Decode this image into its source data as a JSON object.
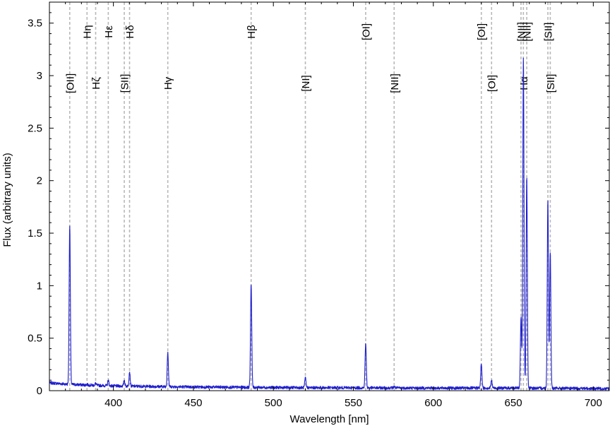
{
  "chart_data": {
    "type": "line",
    "title": "",
    "xlabel": "Wavelength [nm]",
    "ylabel": "Flux (arbitrary units)",
    "xlim": [
      360,
      710
    ],
    "ylim": [
      0,
      3.7
    ],
    "grid": false,
    "x_ticks": [
      {
        "value": 400,
        "label": "400"
      },
      {
        "value": 450,
        "label": "450"
      },
      {
        "value": 500,
        "label": "500"
      },
      {
        "value": 550,
        "label": "550"
      },
      {
        "value": 600,
        "label": "600"
      },
      {
        "value": 650,
        "label": "650"
      },
      {
        "value": 700,
        "label": "700"
      }
    ],
    "y_ticks": [
      {
        "value": 0,
        "label": "0"
      },
      {
        "value": 0.5,
        "label": "0.5"
      },
      {
        "value": 1,
        "label": "1"
      },
      {
        "value": 1.5,
        "label": "1.5"
      },
      {
        "value": 2,
        "label": "2"
      },
      {
        "value": 2.5,
        "label": "2.5"
      },
      {
        "value": 3,
        "label": "3"
      },
      {
        "value": 3.5,
        "label": "3.5"
      }
    ],
    "colors": {
      "spectrum": "#1f1fcf",
      "reference_lines": "#b8b8b8",
      "axes": "#000000"
    },
    "continuum": [
      [
        360,
        0.075
      ],
      [
        372,
        0.06
      ],
      [
        400,
        0.045
      ],
      [
        450,
        0.035
      ],
      [
        500,
        0.03
      ],
      [
        600,
        0.025
      ],
      [
        650,
        0.025
      ],
      [
        710,
        0.02
      ]
    ],
    "series": [
      {
        "peaks": [
          {
            "x": 372.7,
            "y": 1.58
          },
          {
            "x": 383.5,
            "y": 0.06
          },
          {
            "x": 388.9,
            "y": 0.07
          },
          {
            "x": 396.8,
            "y": 0.1
          },
          {
            "x": 406.8,
            "y": 0.1
          },
          {
            "x": 410.1,
            "y": 0.18
          },
          {
            "x": 434.0,
            "y": 0.37
          },
          {
            "x": 486.1,
            "y": 1.02
          },
          {
            "x": 520.0,
            "y": 0.12
          },
          {
            "x": 557.7,
            "y": 0.45
          },
          {
            "x": 575.5,
            "y": 0.04
          },
          {
            "x": 630.0,
            "y": 0.26
          },
          {
            "x": 636.4,
            "y": 0.1
          },
          {
            "x": 654.8,
            "y": 0.7
          },
          {
            "x": 656.3,
            "y": 3.16
          },
          {
            "x": 658.4,
            "y": 2.04
          },
          {
            "x": 671.6,
            "y": 1.82
          },
          {
            "x": 673.1,
            "y": 1.32
          }
        ]
      }
    ],
    "line_markers": [
      {
        "x": 372.7,
        "label": "[OII]",
        "row": 2
      },
      {
        "x": 383.5,
        "label": "Hη",
        "row": 1
      },
      {
        "x": 388.9,
        "label": "Hζ",
        "row": 2
      },
      {
        "x": 396.8,
        "label": "Hε",
        "row": 1
      },
      {
        "x": 406.8,
        "label": "[SII]",
        "row": 2
      },
      {
        "x": 410.1,
        "label": "Hδ",
        "row": 1
      },
      {
        "x": 434.0,
        "label": "Hγ",
        "row": 2
      },
      {
        "x": 486.1,
        "label": "Hβ",
        "row": 1
      },
      {
        "x": 520.0,
        "label": "[NI]",
        "row": 2
      },
      {
        "x": 557.7,
        "label": "[OI]",
        "row": 1
      },
      {
        "x": 575.5,
        "label": "[NII]",
        "row": 2
      },
      {
        "x": 630.0,
        "label": "[OI]",
        "row": 1
      },
      {
        "x": 636.4,
        "label": "[OI]",
        "row": 2
      },
      {
        "x": 654.8,
        "label": "[NII]",
        "row": 1
      },
      {
        "x": 656.3,
        "label": "Hα",
        "row": 2
      },
      {
        "x": 658.4,
        "label": "[NII]",
        "row": 1
      },
      {
        "x": 671.6,
        "label": "[SII]",
        "row": 1
      },
      {
        "x": 673.1,
        "label": "[SII]",
        "row": 2
      }
    ]
  }
}
